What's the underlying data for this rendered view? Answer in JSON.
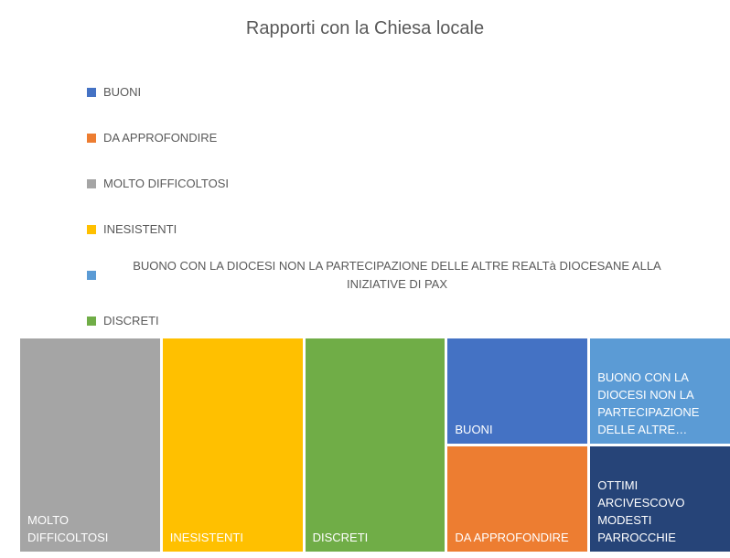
{
  "chart_data": {
    "type": "treemap",
    "title": "Rapporti con la Chiesa locale",
    "categories": [
      "MOLTO DIFFICOLTOSI",
      "INESISTENTI",
      "DISCRETI",
      "BUONI",
      "DA APPROFONDIRE",
      "BUONO CON LA DIOCESI NON LA PARTECIPAZIONE DELLE ALTRE REALTà DIOCESANE ALLA INIZIATIVE DI PAX",
      "OTTIMI ARCIVESCOVO MODESTI PARROCCHIE"
    ],
    "values": [
      2,
      2,
      2,
      1,
      1,
      1,
      1
    ],
    "colors": [
      "#a5a5a5",
      "#ffc000",
      "#70ad47",
      "#4472c4",
      "#ed7d31",
      "#5b9bd5",
      "#264478"
    ],
    "legend_order": [
      3,
      4,
      0,
      1,
      5,
      2,
      6
    ]
  }
}
